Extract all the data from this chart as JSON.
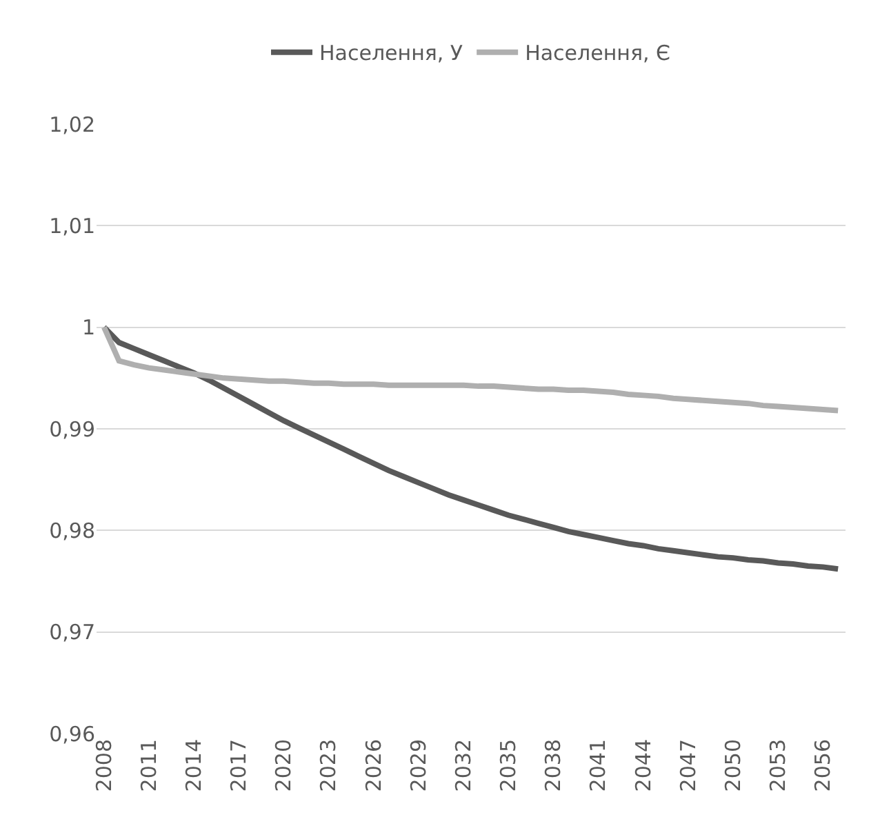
{
  "chart_data": {
    "type": "line",
    "categories": [
      "2008",
      null,
      null,
      "2011",
      null,
      null,
      "2014",
      null,
      null,
      "2017",
      null,
      null,
      "2020",
      null,
      null,
      "2023",
      null,
      null,
      "2026",
      null,
      null,
      "2029",
      null,
      null,
      "2032",
      null,
      null,
      "2035",
      null,
      null,
      "2038",
      null,
      null,
      "2041",
      null,
      null,
      "2044",
      null,
      null,
      "2047",
      null,
      null,
      "2050",
      null,
      null,
      "2053",
      null,
      null,
      "2056",
      null
    ],
    "series": [
      {
        "name": "Населення, У",
        "color": "#595959",
        "values": [
          1.0,
          0.9985,
          0.9979,
          0.9973,
          0.9967,
          0.9961,
          0.9955,
          0.9948,
          0.994,
          0.9932,
          0.9924,
          0.9916,
          0.9908,
          0.9901,
          0.9894,
          0.9887,
          0.988,
          0.9873,
          0.9866,
          0.9859,
          0.9853,
          0.9847,
          0.9841,
          0.9835,
          0.983,
          0.9825,
          0.982,
          0.9815,
          0.9811,
          0.9807,
          0.9803,
          0.9799,
          0.9796,
          0.9793,
          0.979,
          0.9787,
          0.9785,
          0.9782,
          0.978,
          0.9778,
          0.9776,
          0.9774,
          0.9773,
          0.9771,
          0.977,
          0.9768,
          0.9767,
          0.9765,
          0.9764,
          0.9762
        ]
      },
      {
        "name": "Населення, Є",
        "color": "#afafaf",
        "values": [
          1.0,
          0.9967,
          0.9963,
          0.996,
          0.9958,
          0.9956,
          0.9954,
          0.9952,
          0.995,
          0.9949,
          0.9948,
          0.9947,
          0.9947,
          0.9946,
          0.9945,
          0.9945,
          0.9944,
          0.9944,
          0.9944,
          0.9943,
          0.9943,
          0.9943,
          0.9943,
          0.9943,
          0.9943,
          0.9942,
          0.9942,
          0.9941,
          0.994,
          0.9939,
          0.9939,
          0.9938,
          0.9938,
          0.9937,
          0.9936,
          0.9934,
          0.9933,
          0.9932,
          0.993,
          0.9929,
          0.9928,
          0.9927,
          0.9926,
          0.9925,
          0.9923,
          0.9922,
          0.9921,
          0.992,
          0.9919,
          0.9918
        ]
      }
    ],
    "ylim": [
      0.96,
      1.02
    ],
    "yticks": [
      {
        "value": 0.96,
        "label": "0,96"
      },
      {
        "value": 0.97,
        "label": "0,97"
      },
      {
        "value": 0.98,
        "label": "0,98"
      },
      {
        "value": 0.99,
        "label": "0,99"
      },
      1,
      {
        "value": 1.01,
        "label": "1,01"
      },
      {
        "value": 1.02,
        "label": "1,02"
      }
    ],
    "grid": "y",
    "legend": "top",
    "marker": "none",
    "line_style": "solid"
  }
}
